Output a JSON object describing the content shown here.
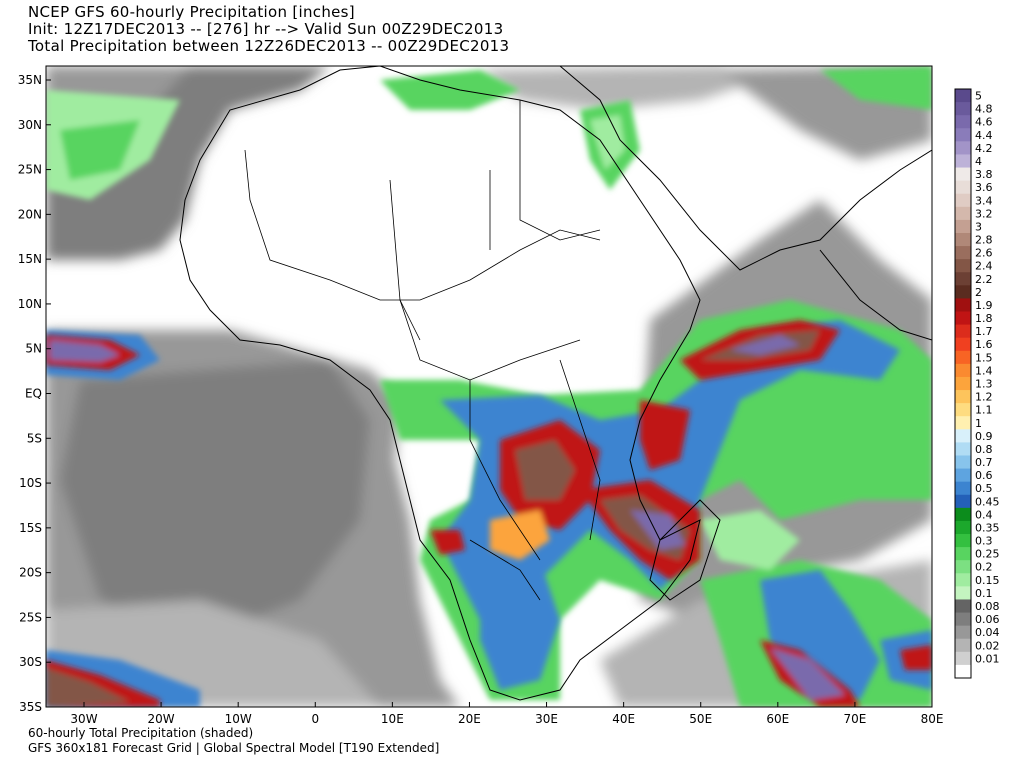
{
  "header": {
    "line1": "NCEP GFS 60-hourly Precipitation [inches]",
    "line2": "Init: 12Z17DEC2013 -- [276] hr --> Valid Sun 00Z29DEC2013",
    "line3": "Total Precipitation between 12Z26DEC2013 -- 00Z29DEC2013"
  },
  "footer": {
    "line1": "60-hourly Total Precipitation (shaded)",
    "line2": "GFS 360x181 Forecast Grid | Global Spectral Model [T190 Extended]"
  },
  "axes": {
    "lat_labels": [
      "35N",
      "30N",
      "25N",
      "20N",
      "15N",
      "10N",
      "5N",
      "EQ",
      "5S",
      "10S",
      "15S",
      "20S",
      "25S",
      "30S",
      "35S"
    ],
    "lon_labels": [
      "30W",
      "20W",
      "10W",
      "0",
      "10E",
      "20E",
      "30E",
      "40E",
      "50E",
      "60E",
      "70E",
      "80E"
    ]
  },
  "colorbar": {
    "levels": [
      {
        "label": "5",
        "color": "#5a4a8c"
      },
      {
        "label": "4.8",
        "color": "#6a5a9c"
      },
      {
        "label": "4.6",
        "color": "#7a6aac"
      },
      {
        "label": "4.4",
        "color": "#8a7cba"
      },
      {
        "label": "4.2",
        "color": "#a294c8"
      },
      {
        "label": "4",
        "color": "#bdb2d8"
      },
      {
        "label": "3.8",
        "color": "#efeae8"
      },
      {
        "label": "3.6",
        "color": "#e8ddd8"
      },
      {
        "label": "3.4",
        "color": "#e0ccc4"
      },
      {
        "label": "3.2",
        "color": "#d4b8ac"
      },
      {
        "label": "3",
        "color": "#c4a092"
      },
      {
        "label": "2.8",
        "color": "#b08878"
      },
      {
        "label": "2.6",
        "color": "#9a6e5e"
      },
      {
        "label": "2.4",
        "color": "#835646"
      },
      {
        "label": "2.2",
        "color": "#6c4034"
      },
      {
        "label": "2",
        "color": "#5a2c20"
      },
      {
        "label": "1.9",
        "color": "#a01010"
      },
      {
        "label": "1.8",
        "color": "#c01414"
      },
      {
        "label": "1.7",
        "color": "#dc2c1c"
      },
      {
        "label": "1.6",
        "color": "#f04020"
      },
      {
        "label": "1.5",
        "color": "#f86424"
      },
      {
        "label": "1.4",
        "color": "#fa8a30"
      },
      {
        "label": "1.3",
        "color": "#fca43c"
      },
      {
        "label": "1.2",
        "color": "#fdc45c"
      },
      {
        "label": "1.1",
        "color": "#fedc80"
      },
      {
        "label": "1",
        "color": "#fff0b0"
      },
      {
        "label": "0.9",
        "color": "#d8f0fa"
      },
      {
        "label": "0.8",
        "color": "#b0dcf4"
      },
      {
        "label": "0.7",
        "color": "#88c4ec"
      },
      {
        "label": "0.6",
        "color": "#5ea4e0"
      },
      {
        "label": "0.5",
        "color": "#3c84d0"
      },
      {
        "label": "0.45",
        "color": "#2460b8"
      },
      {
        "label": "0.4",
        "color": "#0c8c1c"
      },
      {
        "label": "0.35",
        "color": "#1ca82c"
      },
      {
        "label": "0.3",
        "color": "#34c040"
      },
      {
        "label": "0.25",
        "color": "#58d460"
      },
      {
        "label": "0.2",
        "color": "#7ce082"
      },
      {
        "label": "0.15",
        "color": "#a0eca0"
      },
      {
        "label": "0.1",
        "color": "#c4f4c0"
      },
      {
        "label": "0.08",
        "color": "#646464"
      },
      {
        "label": "0.06",
        "color": "#7e7e7e"
      },
      {
        "label": "0.04",
        "color": "#989898"
      },
      {
        "label": "0.02",
        "color": "#b4b4b4"
      },
      {
        "label": "0.01",
        "color": "#d0d0d0"
      },
      {
        "label": "",
        "color": "#ffffff"
      }
    ]
  },
  "map_colors": {
    "land": "#ffffff",
    "gray_dark": "#7e7e7e",
    "gray_mid": "#989898",
    "gray_light": "#b4b4b4",
    "green": "#58d460",
    "green_light": "#a0eca0",
    "blue": "#3c84d0",
    "red": "#c01414",
    "brown": "#835646",
    "purple": "#7a6aac",
    "orange": "#fca43c"
  }
}
